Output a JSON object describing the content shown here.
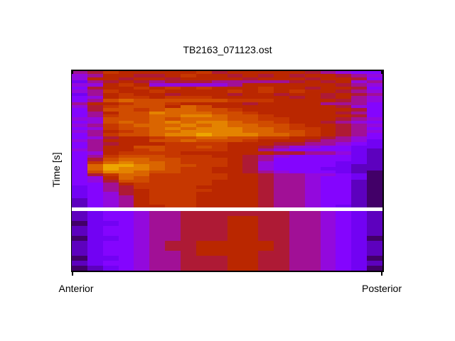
{
  "figure": {
    "title": "TB2163_071123.ost",
    "ylabel": "Time [s]",
    "xlabel_left": "Anterior",
    "xlabel_right": "Posterior"
  },
  "chart_data": {
    "type": "heatmap",
    "title": "TB2163_071123.ost",
    "ylabel": "Time [s]",
    "x_axis": {
      "left_label": "Anterior",
      "right_label": "Posterior"
    },
    "legend": "none",
    "grid": "off",
    "columns": 20,
    "colormap": "gnuplot black-purple-violet-red-orange-yellow",
    "value_encoding": "one hex digit per cell, 0 = min intensity, f = max intensity; rows listed top to bottom",
    "separator": "solid white horizontal line between upper and lower sections",
    "sections": [
      {
        "name": "upper",
        "rows": [
          "67988888978888876544",
          "56887789887878788765",
          "58878878888788878874",
          "36787677766666787856",
          "55898555556888888765",
          "47889898988898878874",
          "56988988889898988765",
          "36898878887887887876",
          "45899899988888787865",
          "46abaaaaaa9998888765",
          "6889aa98888788886664",
          "579aaa8ba88888888754",
          "47aa9abbaa9888888874",
          "468aacbbbaa988888764",
          "469aabbccbaa98888874",
          "55aaababbbaa99888765",
          "45ababcbccbaa9887654",
          "569abbbcbcbbaa988765",
          "459aabcbcccbba998764",
          "5689abbccccbbaa98765",
          "469aabccdcccbba98764",
          "457889aabbaa99887654",
          "56888aabaaa988876653",
          "46788899998887766543",
          "4688aa99a98876554433",
          "56889a99998865444432",
          "45899998888887766532",
          "469aaa99988765444432",
          "47abbaa9998764444432",
          "49bcbba9998754444332",
          "4bddcbaa998754444322",
          "4bdccba9988754443322",
          "4accbaa9988765444321",
          "479bb999998876655431",
          "458ba999998876654431",
          "457aa999988876654421",
          "44689999988876654421",
          "34679999888876654421",
          "34678999988876654421",
          "34578999888876654421",
          "34568999888876654421",
          "24568999888876654421",
          "24568999888876654421",
          "24568899888876654321"
        ]
      },
      {
        "name": "lower",
        "rows": [
          "23445667777777665432",
          "23445667778877665432",
          "13345667778877665432",
          "23445667778877665432",
          "23445667778877665432",
          "13345667778877665431",
          "23445677888887665432",
          "23445677888887665432",
          "23445667888877665432",
          "13345667778877665431",
          "23445667778877665432",
          "12345667778877665431"
        ]
      }
    ]
  }
}
